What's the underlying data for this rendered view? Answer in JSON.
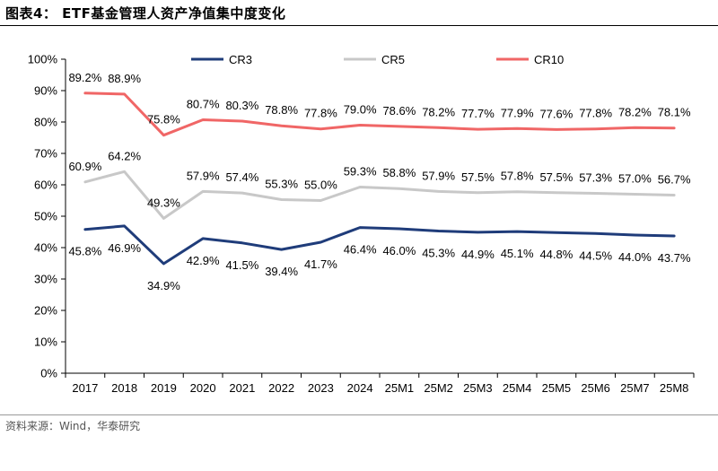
{
  "figure": {
    "title": "图表4： ETF基金管理人资产净值集中度变化",
    "source": "资料来源：Wind，华泰研究"
  },
  "chart_data": {
    "type": "line",
    "title": "ETF基金管理人资产净值集中度变化",
    "xlabel": "",
    "ylabel": "",
    "ylim": [
      0,
      100
    ],
    "y_ticks": [
      "0%",
      "10%",
      "20%",
      "30%",
      "40%",
      "50%",
      "60%",
      "70%",
      "80%",
      "90%",
      "100%"
    ],
    "y_tick_values": [
      0,
      10,
      20,
      30,
      40,
      50,
      60,
      70,
      80,
      90,
      100
    ],
    "categories": [
      "2017",
      "2018",
      "2019",
      "2020",
      "2021",
      "2022",
      "2023",
      "2024",
      "25M1",
      "25M2",
      "25M3",
      "25M4",
      "25M5",
      "25M6",
      "25M7",
      "25M8"
    ],
    "legend_position": "top",
    "series": [
      {
        "name": "CR3",
        "color": "#1f3c7a",
        "label_position": "below",
        "values": [
          45.8,
          46.9,
          34.9,
          42.9,
          41.5,
          39.4,
          41.7,
          46.4,
          46.0,
          45.3,
          44.9,
          45.1,
          44.8,
          44.5,
          44.0,
          43.7
        ],
        "labels": [
          "45.8%",
          "46.9%",
          "34.9%",
          "42.9%",
          "41.5%",
          "39.4%",
          "41.7%",
          "46.4%",
          "46.0%",
          "45.3%",
          "44.9%",
          "45.1%",
          "44.8%",
          "44.5%",
          "44.0%",
          "43.7%"
        ]
      },
      {
        "name": "CR5",
        "color": "#c8c8c8",
        "label_position": "above",
        "values": [
          60.9,
          64.2,
          49.3,
          57.9,
          57.4,
          55.3,
          55.0,
          59.3,
          58.8,
          57.9,
          57.5,
          57.8,
          57.5,
          57.3,
          57.0,
          56.7
        ],
        "labels": [
          "60.9%",
          "64.2%",
          "49.3%",
          "57.9%",
          "57.4%",
          "55.3%",
          "55.0%",
          "59.3%",
          "58.8%",
          "57.9%",
          "57.5%",
          "57.8%",
          "57.5%",
          "57.3%",
          "57.0%",
          "56.7%"
        ]
      },
      {
        "name": "CR10",
        "color": "#f06666",
        "label_position": "above",
        "values": [
          89.2,
          88.9,
          75.8,
          80.7,
          80.3,
          78.8,
          77.8,
          79.0,
          78.6,
          78.2,
          77.7,
          77.9,
          77.6,
          77.8,
          78.2,
          78.1
        ],
        "labels": [
          "89.2%",
          "88.9%",
          "75.8%",
          "80.7%",
          "80.3%",
          "78.8%",
          "77.8%",
          "79.0%",
          "78.6%",
          "78.2%",
          "77.7%",
          "77.9%",
          "77.6%",
          "77.8%",
          "78.2%",
          "78.1%"
        ]
      }
    ]
  }
}
